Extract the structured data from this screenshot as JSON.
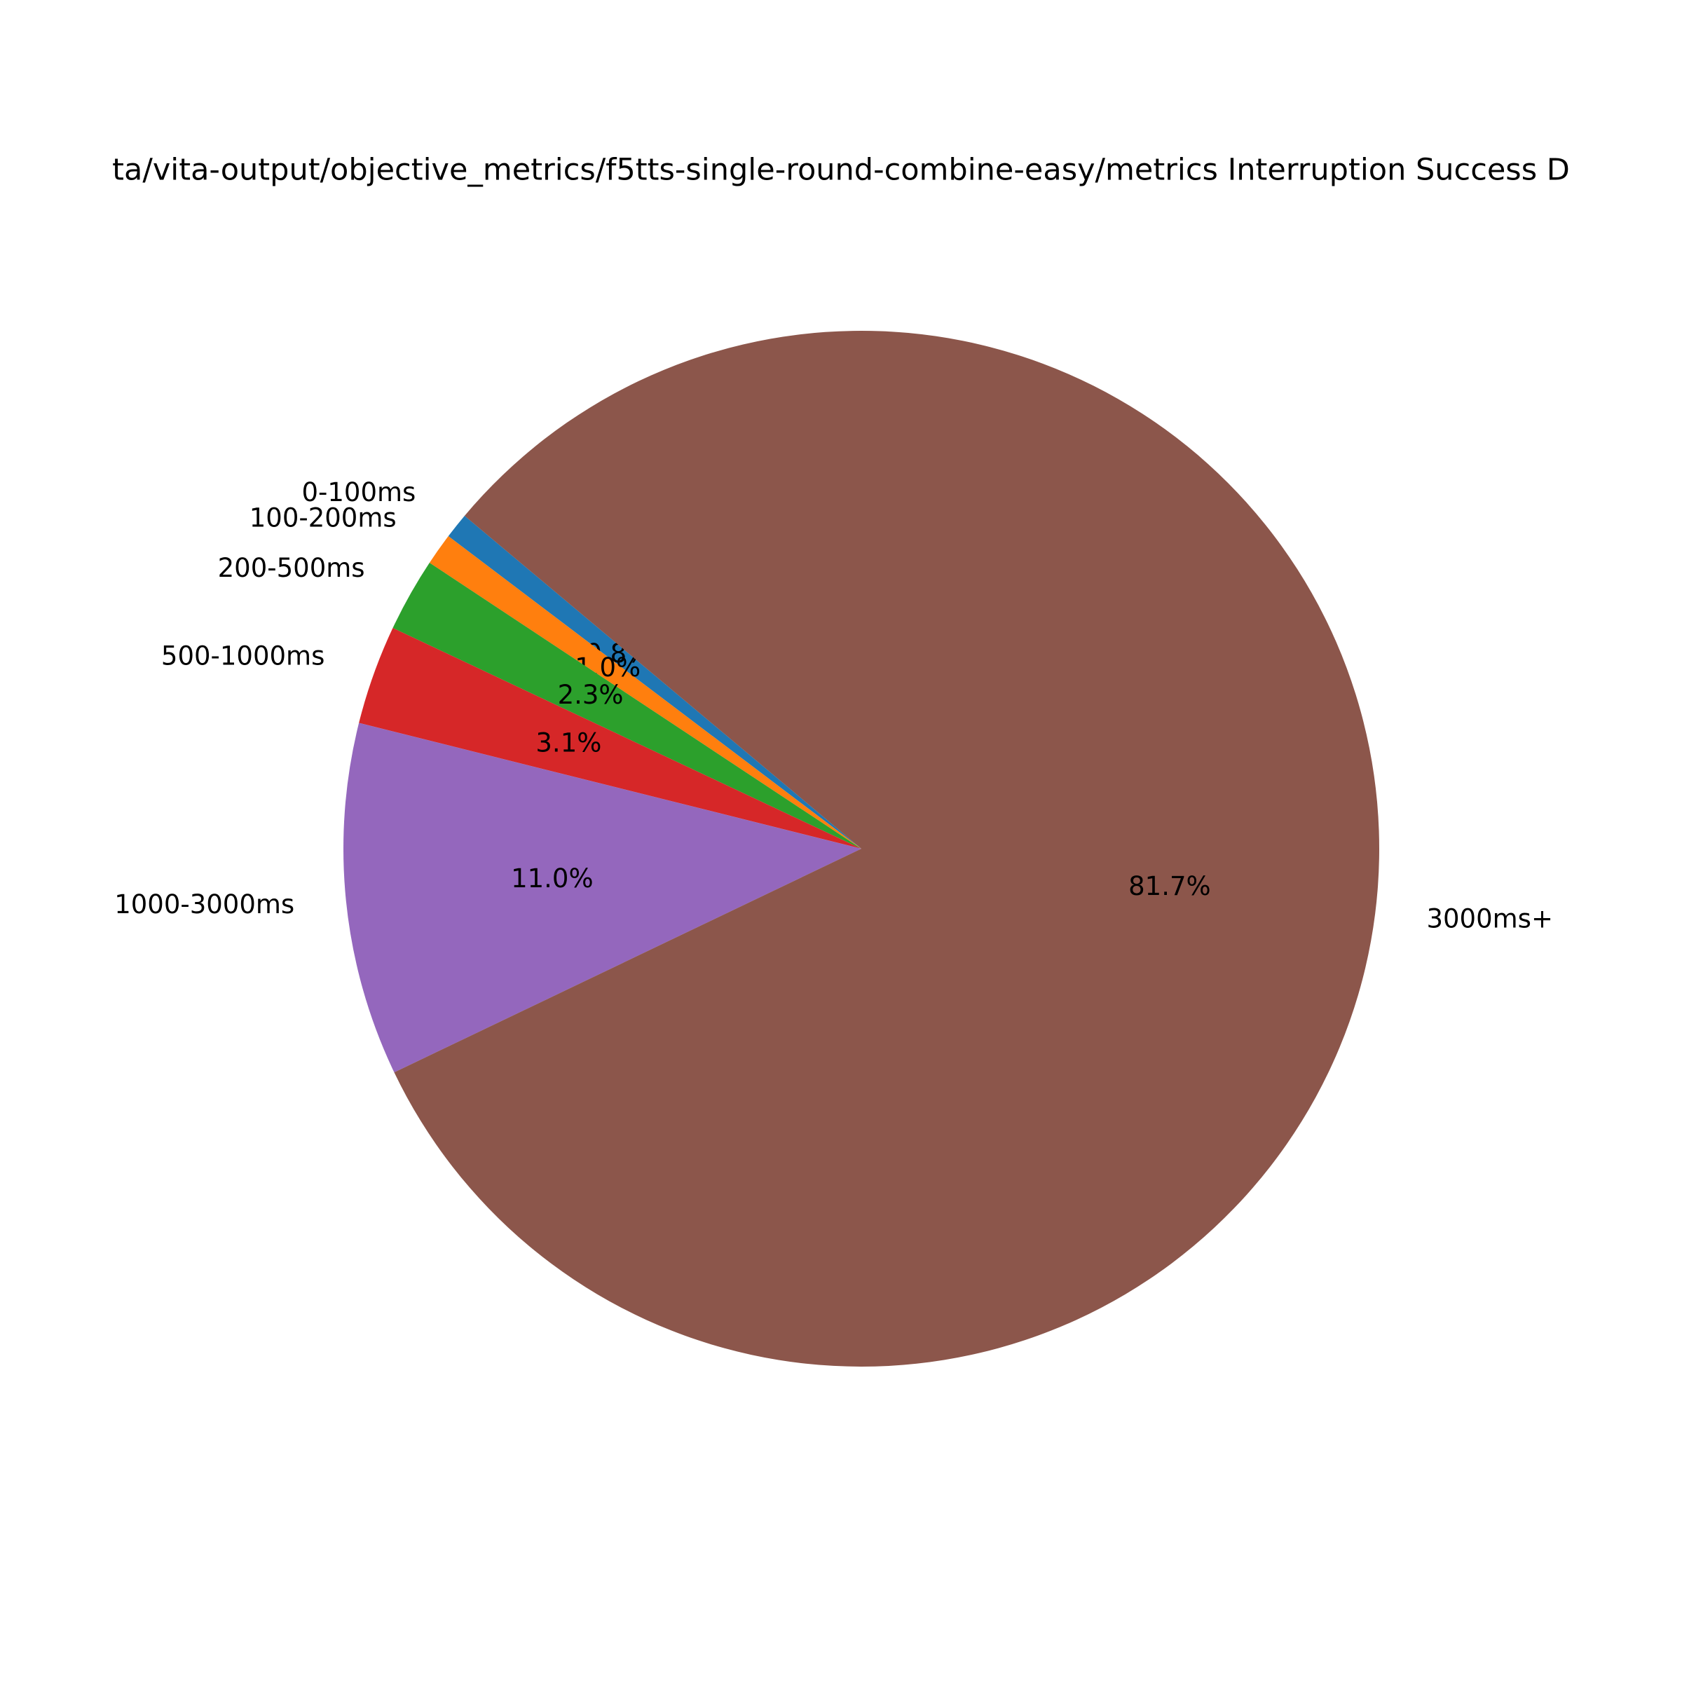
{
  "chart_data": {
    "type": "pie",
    "title": "ta/vita-output/objective_metrics/f5tts-single-round-combine-easy/metrics Interruption Success D",
    "categories": [
      "0-100ms",
      "100-200ms",
      "200-500ms",
      "500-1000ms",
      "1000-3000ms",
      "3000ms+"
    ],
    "values": [
      0.8,
      1.0,
      2.3,
      3.1,
      11.0,
      81.7
    ],
    "value_labels": [
      "0.8%",
      "1.0%",
      "2.3%",
      "3.1%",
      "11.0%",
      "81.7%"
    ],
    "colors": [
      "#1f77b4",
      "#ff7f0e",
      "#2ca02c",
      "#d62728",
      "#9467bd",
      "#8c564b"
    ],
    "start_angle": 140
  }
}
